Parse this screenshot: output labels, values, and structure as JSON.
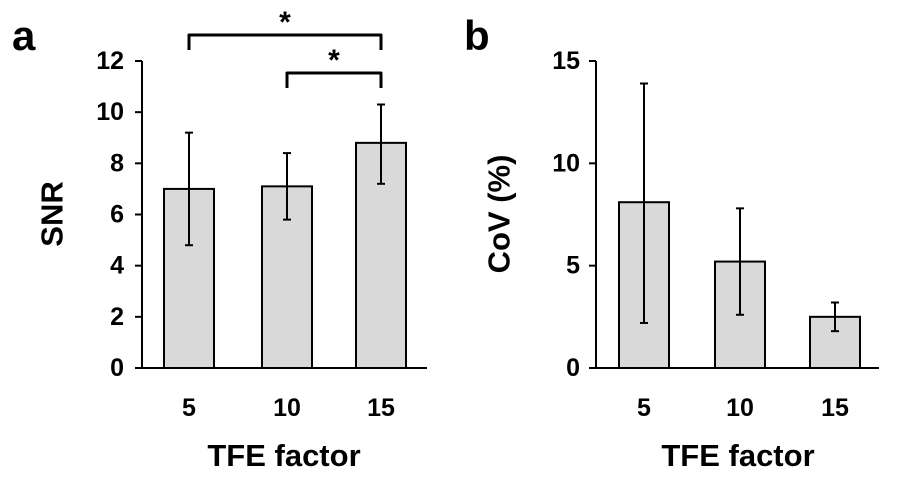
{
  "chart_data": [
    {
      "panel": "a",
      "type": "bar",
      "categories": [
        "5",
        "10",
        "15"
      ],
      "values": [
        7.0,
        7.1,
        8.8
      ],
      "error_low": [
        4.8,
        5.8,
        7.2
      ],
      "error_high": [
        9.2,
        8.4,
        10.3
      ],
      "ylim": [
        0,
        12
      ],
      "yticks": [
        "0",
        "2",
        "4",
        "6",
        "8",
        "10",
        "12"
      ],
      "xlabel": "TFE factor",
      "ylabel": "SNR",
      "significance": [
        {
          "from": 0,
          "to": 2,
          "label": "*"
        },
        {
          "from": 1,
          "to": 2,
          "label": "*"
        }
      ],
      "bar_color": "#d9d9d9"
    },
    {
      "panel": "b",
      "type": "bar",
      "categories": [
        "5",
        "10",
        "15"
      ],
      "values": [
        8.1,
        5.2,
        2.5
      ],
      "error_low": [
        2.2,
        2.6,
        1.8
      ],
      "error_high": [
        13.9,
        7.8,
        3.2
      ],
      "ylim": [
        0,
        15
      ],
      "yticks": [
        "0",
        "5",
        "10",
        "15"
      ],
      "xlabel": "TFE factor",
      "ylabel": "CoV (%)",
      "significance": [],
      "bar_color": "#d9d9d9"
    }
  ]
}
